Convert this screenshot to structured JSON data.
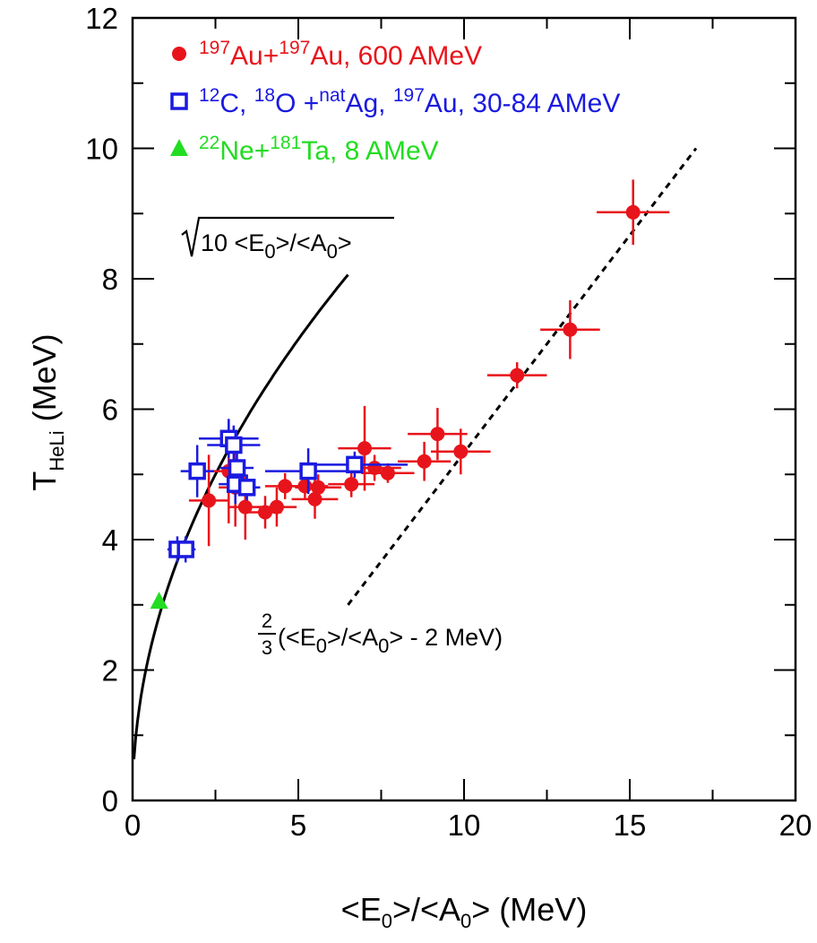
{
  "chart_data": {
    "type": "scatter",
    "xlabel": {
      "pre": "<E",
      "s1": "0",
      "mid": ">/<A",
      "s2": "0",
      "post": "> (MeV)"
    },
    "ylabel": {
      "pre": "T",
      "sub": "HeLi",
      "post": " (MeV)"
    },
    "xlim": [
      0,
      20
    ],
    "ylim": [
      0,
      12
    ],
    "xticks": [
      0,
      5,
      10,
      15,
      20
    ],
    "yticks": [
      0,
      2,
      4,
      6,
      8,
      10,
      12
    ],
    "xtick_labels": [
      "0",
      "5",
      "10",
      "15",
      "20"
    ],
    "ytick_labels": [
      "0",
      "2",
      "4",
      "6",
      "8",
      "10",
      "12"
    ],
    "legend_position": "top-left",
    "grid": false,
    "series": [
      {
        "marker": "filled-circle",
        "color": "#e8141b",
        "legend": [
          {
            "t": "197",
            "sup": true
          },
          {
            "t": "Au+"
          },
          {
            "t": "197",
            "sup": true
          },
          {
            "t": "Au, 600 AMeV"
          }
        ],
        "points": [
          {
            "x": 2.3,
            "y": 4.6,
            "xerr": 0.6,
            "yerr": 0.7
          },
          {
            "x": 2.9,
            "y": 5.05,
            "xerr": 0.5,
            "yerr": 0.8
          },
          {
            "x": 3.1,
            "y": 4.8,
            "xerr": 0.5,
            "yerr": 0.6
          },
          {
            "x": 3.4,
            "y": 4.5,
            "xerr": 0.5,
            "yerr": 0.5
          },
          {
            "x": 4.0,
            "y": 4.42,
            "xerr": 0.5,
            "yerr": 0.25
          },
          {
            "x": 4.35,
            "y": 4.5,
            "xerr": 0.6,
            "yerr": 0.3
          },
          {
            "x": 4.6,
            "y": 4.82,
            "xerr": 0.6,
            "yerr": 0.2
          },
          {
            "x": 5.2,
            "y": 4.82,
            "xerr": 0.7,
            "yerr": 0.2
          },
          {
            "x": 5.5,
            "y": 4.62,
            "xerr": 0.7,
            "yerr": 0.3
          },
          {
            "x": 5.6,
            "y": 4.8,
            "xerr": 0.7,
            "yerr": 0.2
          },
          {
            "x": 6.6,
            "y": 4.85,
            "xerr": 0.7,
            "yerr": 0.2
          },
          {
            "x": 7.0,
            "y": 5.4,
            "xerr": 0.8,
            "yerr": 0.65
          },
          {
            "x": 7.3,
            "y": 5.1,
            "xerr": 0.8,
            "yerr": 0.2
          },
          {
            "x": 7.7,
            "y": 5.02,
            "xerr": 0.8,
            "yerr": 0.15
          },
          {
            "x": 8.8,
            "y": 5.2,
            "xerr": 0.8,
            "yerr": 0.3
          },
          {
            "x": 9.2,
            "y": 5.62,
            "xerr": 0.9,
            "yerr": 0.4
          },
          {
            "x": 9.9,
            "y": 5.35,
            "xerr": 0.9,
            "yerr": 0.35
          },
          {
            "x": 11.6,
            "y": 6.52,
            "xerr": 0.9,
            "yerr": 0.2
          },
          {
            "x": 13.2,
            "y": 7.22,
            "xerr": 0.9,
            "yerr": 0.45
          },
          {
            "x": 15.1,
            "y": 9.02,
            "xerr": 1.1,
            "yerr": 0.5
          }
        ]
      },
      {
        "marker": "open-square",
        "color": "#1a1ae0",
        "legend": [
          {
            "t": "12",
            "sup": true
          },
          {
            "t": "C, "
          },
          {
            "t": "18",
            "sup": true
          },
          {
            "t": "O +"
          },
          {
            "t": "nat",
            "sup": true
          },
          {
            "t": "Ag, "
          },
          {
            "t": "197",
            "sup": true
          },
          {
            "t": "Au, 30-84 AMeV"
          }
        ],
        "points": [
          {
            "x": 1.35,
            "y": 3.85,
            "xerr": 0.3,
            "yerr": 0.2
          },
          {
            "x": 1.6,
            "y": 3.85,
            "xerr": 0.3,
            "yerr": 0.2
          },
          {
            "x": 1.95,
            "y": 5.05,
            "xerr": 0.5,
            "yerr": 0.4
          },
          {
            "x": 2.9,
            "y": 5.55,
            "xerr": 0.9,
            "yerr": 0.3
          },
          {
            "x": 3.05,
            "y": 5.45,
            "xerr": 0.8,
            "yerr": 0.3
          },
          {
            "x": 3.15,
            "y": 5.1,
            "xerr": 0.5,
            "yerr": 0.3
          },
          {
            "x": 3.1,
            "y": 4.85,
            "xerr": 0.5,
            "yerr": 0.3
          },
          {
            "x": 3.45,
            "y": 4.8,
            "xerr": 0.4,
            "yerr": 0.2
          },
          {
            "x": 5.3,
            "y": 5.05,
            "xerr": 1.3,
            "yerr": 0.35
          },
          {
            "x": 6.7,
            "y": 5.15,
            "xerr": 1.6,
            "yerr": 0.2
          }
        ]
      },
      {
        "marker": "filled-triangle",
        "color": "#22dd22",
        "legend": [
          {
            "t": "22",
            "sup": true
          },
          {
            "t": "Ne+"
          },
          {
            "t": "181",
            "sup": true
          },
          {
            "t": "Ta, 8 AMeV"
          }
        ],
        "points": [
          {
            "x": 0.8,
            "y": 3.05,
            "xerr": 0,
            "yerr": 0
          }
        ]
      }
    ],
    "curves": [
      {
        "name": "sqrt",
        "style": "solid",
        "formula": "sqrt(10*x)",
        "xrange": [
          0.04,
          6.5
        ]
      },
      {
        "name": "linear",
        "style": "dashed",
        "formula": "2/3*(x-2)",
        "xrange": [
          6.5,
          17.0
        ]
      }
    ],
    "annotations": {
      "sqrt_label": {
        "pre": "10 <E",
        "s1": "0",
        "mid": ">/<A",
        "s2": "0",
        "post": ">"
      },
      "linear_label": {
        "num": "2",
        "den": "3",
        "pre": "(<E",
        "s1": "0",
        "mid": ">/<A",
        "s2": "0",
        "post": "> - 2 MeV)"
      }
    }
  }
}
